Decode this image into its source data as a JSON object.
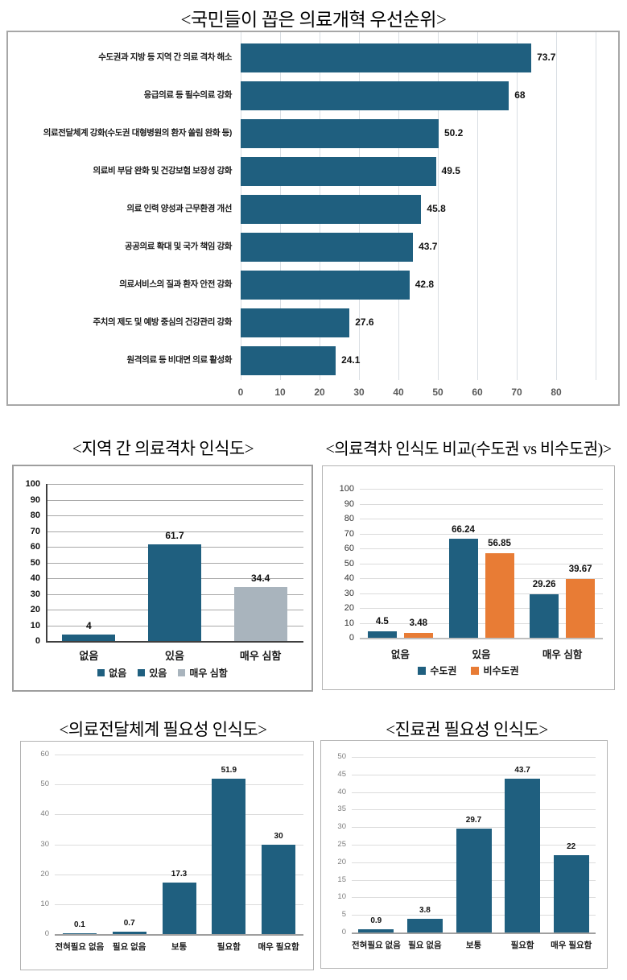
{
  "colors": {
    "bar_teal": "#1F5F7F",
    "bar_orange": "#E87C35",
    "bar_gray": "#A9B4BD"
  },
  "chart_data": [
    {
      "type": "bar",
      "orientation": "horizontal",
      "title": "<국민들이 꼽은 의료개혁 우선순위>",
      "categories": [
        "수도권과 지방 등 지역 간 의료 격차 해소",
        "응급의료 등 필수의료 강화",
        "의료전달체계 강화(수도권 대형병원의 환자 쏠림 완화 등)",
        "의료비 부담 완화 및 건강보험 보장성 강화",
        "의료 인력 양성과 근무환경 개선",
        "공공의료 확대 및 국가 책임 강화",
        "의료서비스의 질과 환자 안전 강화",
        "주치의 제도 및 예방 중심의 건강관리 강화",
        "원격의료 등 비대면 의료 활성화"
      ],
      "values": [
        73.7,
        68,
        50.2,
        49.5,
        45.8,
        43.7,
        42.8,
        27.6,
        24.1
      ],
      "x_ticks": [
        0,
        10,
        20,
        30,
        40,
        50,
        60,
        70,
        80
      ],
      "xlim": [
        0,
        90
      ],
      "bar_color": "#1F5F7F",
      "grid": true
    },
    {
      "type": "bar",
      "title": "<지역 간 의료격차 인식도>",
      "categories": [
        "없음",
        "있음",
        "매우 심함"
      ],
      "values": [
        4,
        61.7,
        34.4
      ],
      "bar_colors": [
        "#1F5F7F",
        "#1F5F7F",
        "#A9B4BD"
      ],
      "y_ticks": [
        0,
        10,
        20,
        30,
        40,
        50,
        60,
        70,
        80,
        90,
        100
      ],
      "ylim": [
        0,
        100
      ],
      "grid": true,
      "legend_position": "bottom",
      "legend": [
        {
          "label": "없음",
          "color": "#1F5F7F"
        },
        {
          "label": "있음",
          "color": "#1F5F7F"
        },
        {
          "label": "매우 심함",
          "color": "#A9B4BD"
        }
      ]
    },
    {
      "type": "grouped-bar",
      "title": "<의료격차 인식도 비교(수도권 vs 비수도권)>",
      "categories": [
        "없음",
        "있음",
        "매우 심함"
      ],
      "series": [
        {
          "name": "수도권",
          "color": "#1F5F7F",
          "values": [
            4.5,
            66.24,
            29.26
          ]
        },
        {
          "name": "비수도권",
          "color": "#E87C35",
          "values": [
            3.48,
            56.85,
            39.67
          ]
        }
      ],
      "y_ticks": [
        0,
        10,
        20,
        30,
        40,
        50,
        60,
        70,
        80,
        90,
        100
      ],
      "ylim": [
        0,
        100
      ],
      "grid": true,
      "legend_position": "bottom"
    },
    {
      "type": "bar",
      "title": "<의료전달체계 필요성 인식도>",
      "categories": [
        "전혀필요 없음",
        "필요 없음",
        "보통",
        "필요함",
        "매우 필요함"
      ],
      "values": [
        0.1,
        0.7,
        17.3,
        51.9,
        30
      ],
      "bar_color": "#1F5F7F",
      "y_ticks": [
        0,
        10,
        20,
        30,
        40,
        50,
        60
      ],
      "ylim": [
        0,
        60
      ],
      "grid": true
    },
    {
      "type": "bar",
      "title": "<진료권 필요성 인식도>",
      "categories": [
        "전혀필요 없음",
        "필요 없음",
        "보통",
        "필요함",
        "매우 필요함"
      ],
      "values": [
        0.9,
        3.8,
        29.7,
        43.7,
        22
      ],
      "bar_color": "#1F5F7F",
      "y_ticks": [
        0,
        5,
        10,
        15,
        20,
        25,
        30,
        35,
        40,
        45,
        50
      ],
      "ylim": [
        0,
        50
      ],
      "grid": true
    }
  ]
}
